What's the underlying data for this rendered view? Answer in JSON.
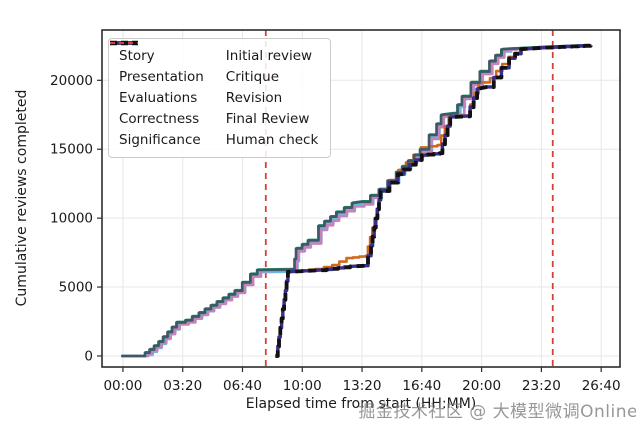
{
  "watermark": {
    "text": "掘金技术社区 @ 大模型微调Online",
    "color": "#7e7e7e"
  },
  "chart_data": {
    "type": "line",
    "title": "",
    "xlabel": "Elapsed time from start (HH:MM)",
    "ylabel": "Cumulative reviews completed",
    "x_tick_minutes": [
      0,
      200,
      400,
      600,
      800,
      1000,
      1200,
      1400,
      1600
    ],
    "x_tick_labels": [
      "00:00",
      "03:20",
      "06:40",
      "10:00",
      "13:20",
      "16:40",
      "20:00",
      "23:20",
      "26:40"
    ],
    "y_ticks": [
      0,
      5000,
      10000,
      15000,
      20000
    ],
    "y_tick_labels": [
      "0",
      "5000",
      "10000",
      "15000",
      "20000"
    ],
    "xlim_minutes": [
      -70,
      1663
    ],
    "ylim": [
      -800,
      23650
    ],
    "grid": true,
    "legend_position": "upper left, two columns",
    "style_note": "stepped cumulative curves; reviewer curves overlap tightly; Final Review dashed black over Revision purple",
    "base_curves": {
      "reviewers": [
        [
          0,
          0
        ],
        [
          65,
          0
        ],
        [
          80,
          200
        ],
        [
          95,
          430
        ],
        [
          110,
          700
        ],
        [
          125,
          1000
        ],
        [
          140,
          1350
        ],
        [
          155,
          1700
        ],
        [
          170,
          2050
        ],
        [
          185,
          2400
        ],
        [
          215,
          2550
        ],
        [
          260,
          3100
        ],
        [
          320,
          3900
        ],
        [
          380,
          4700
        ],
        [
          405,
          5300
        ],
        [
          432,
          5900
        ],
        [
          455,
          6200
        ],
        [
          575,
          6240
        ],
        [
          585,
          7760
        ],
        [
          625,
          8350
        ],
        [
          660,
          9400
        ],
        [
          720,
          10400
        ],
        [
          772,
          11050
        ],
        [
          805,
          11150
        ],
        [
          862,
          12050
        ],
        [
          920,
          13300
        ],
        [
          1000,
          14950
        ],
        [
          1030,
          16000
        ],
        [
          1055,
          16800
        ],
        [
          1070,
          17450
        ],
        [
          1110,
          17560
        ],
        [
          1140,
          18800
        ],
        [
          1170,
          19800
        ],
        [
          1200,
          20600
        ],
        [
          1232,
          21350
        ],
        [
          1272,
          22200
        ],
        [
          1295,
          22280
        ],
        [
          1420,
          22420
        ],
        [
          1565,
          22540
        ]
      ],
      "significance": [
        [
          0,
          0
        ],
        [
          70,
          0
        ],
        [
          85,
          180
        ],
        [
          100,
          400
        ],
        [
          115,
          660
        ],
        [
          130,
          950
        ],
        [
          145,
          1280
        ],
        [
          160,
          1620
        ],
        [
          175,
          1960
        ],
        [
          190,
          2310
        ],
        [
          220,
          2460
        ],
        [
          265,
          3000
        ],
        [
          325,
          3800
        ],
        [
          385,
          4580
        ],
        [
          408,
          5150
        ],
        [
          436,
          5760
        ],
        [
          462,
          6160
        ],
        [
          577,
          6210
        ],
        [
          587,
          7590
        ],
        [
          628,
          8150
        ],
        [
          663,
          9150
        ],
        [
          723,
          10150
        ],
        [
          775,
          10850
        ],
        [
          808,
          11000
        ],
        [
          864,
          11950
        ],
        [
          922,
          13150
        ],
        [
          1002,
          14750
        ],
        [
          1032,
          15750
        ],
        [
          1057,
          16600
        ],
        [
          1073,
          17380
        ],
        [
          1112,
          17500
        ],
        [
          1142,
          18650
        ],
        [
          1172,
          19650
        ],
        [
          1202,
          20450
        ],
        [
          1234,
          21200
        ],
        [
          1276,
          22120
        ],
        [
          1297,
          22230
        ],
        [
          1422,
          22390
        ],
        [
          1565,
          22520
        ]
      ],
      "final_pipeline": [
        [
          510,
          0
        ],
        [
          518,
          700
        ],
        [
          552,
          6110
        ],
        [
          660,
          6230
        ],
        [
          760,
          6500
        ],
        [
          810,
          6550
        ],
        [
          830,
          8000
        ],
        [
          862,
          11980
        ],
        [
          920,
          13200
        ],
        [
          1000,
          14570
        ],
        [
          1060,
          14720
        ],
        [
          1095,
          17330
        ],
        [
          1150,
          17400
        ],
        [
          1185,
          19380
        ],
        [
          1215,
          19520
        ],
        [
          1292,
          21600
        ],
        [
          1332,
          22260
        ],
        [
          1420,
          22380
        ],
        [
          1565,
          22530
        ]
      ],
      "initial_review": [
        [
          510,
          0
        ],
        [
          518,
          700
        ],
        [
          553,
          6130
        ],
        [
          645,
          6300
        ],
        [
          700,
          6600
        ],
        [
          748,
          7100
        ],
        [
          812,
          7260
        ],
        [
          864,
          12020
        ],
        [
          922,
          13500
        ],
        [
          997,
          15130
        ],
        [
          1052,
          15300
        ],
        [
          1090,
          17360
        ],
        [
          1148,
          17440
        ],
        [
          1190,
          19850
        ],
        [
          1228,
          20150
        ],
        [
          1290,
          21700
        ],
        [
          1330,
          22280
        ],
        [
          1420,
          22390
        ],
        [
          1565,
          22530
        ]
      ]
    },
    "series": [
      {
        "name": "Story",
        "color": "#1f77b4",
        "base": "reviewers",
        "dv": 0,
        "dt": 0,
        "width": 2.6
      },
      {
        "name": "Presentation",
        "color": "#e0a225",
        "base": "reviewers",
        "dv": -60,
        "dt": 2,
        "width": 2.6
      },
      {
        "name": "Evaluations",
        "color": "#149c63",
        "base": "reviewers",
        "dv": 70,
        "dt": -3,
        "width": 2.6
      },
      {
        "name": "Correctness",
        "color": "#6db9e8",
        "base": "reviewers",
        "dv": -120,
        "dt": 4,
        "width": 2.6
      },
      {
        "name": "Significance",
        "color": "#c583b8",
        "base": "significance",
        "dv": 0,
        "dt": 0,
        "width": 2.6
      },
      {
        "name": "Initial review",
        "color": "#d06a1e",
        "base": "initial_review",
        "dv": 0,
        "dt": 0,
        "width": 2.6
      },
      {
        "name": "Critique",
        "color": "#3d5866",
        "base": "reviewers",
        "dv": 35,
        "dt": -6,
        "width": 2.6
      },
      {
        "name": "Revision",
        "color": "#3b2d8f",
        "base": "final_pipeline",
        "dv": 0,
        "dt": 0,
        "width": 3.4
      },
      {
        "name": "Final Review",
        "color": "#111111",
        "base": "final_pipeline",
        "dv": -10,
        "dt": 0,
        "width": 3.8,
        "dash": "8 5"
      }
    ],
    "vlines": {
      "name": "Human check",
      "color": "#d6403a",
      "dash": "6 5",
      "times_minutes": [
        478,
        1438
      ],
      "times_hhmm": [
        "07:58",
        "23:58"
      ]
    },
    "legend": [
      {
        "label": "Story",
        "color": "#1f77b4",
        "width": 3.5,
        "dash": ""
      },
      {
        "label": "Presentation",
        "color": "#e0a225",
        "width": 3.5,
        "dash": ""
      },
      {
        "label": "Evaluations",
        "color": "#149c63",
        "width": 3.5,
        "dash": ""
      },
      {
        "label": "Correctness",
        "color": "#6db9e8",
        "width": 3.5,
        "dash": ""
      },
      {
        "label": "Significance",
        "color": "#c583b8",
        "width": 3.5,
        "dash": ""
      },
      {
        "label": "Initial review",
        "color": "#d06a1e",
        "width": 3.5,
        "dash": ""
      },
      {
        "label": "Critique",
        "color": "#3d5866",
        "width": 3.5,
        "dash": ""
      },
      {
        "label": "Revision",
        "color": "#3b2d8f",
        "width": 3.5,
        "dash": ""
      },
      {
        "label": "Final Review",
        "color": "#111111",
        "width": 4.5,
        "dash": "7 4"
      },
      {
        "label": "Human check",
        "color": "#d6403a",
        "width": 2,
        "dash": "5 4"
      }
    ]
  }
}
